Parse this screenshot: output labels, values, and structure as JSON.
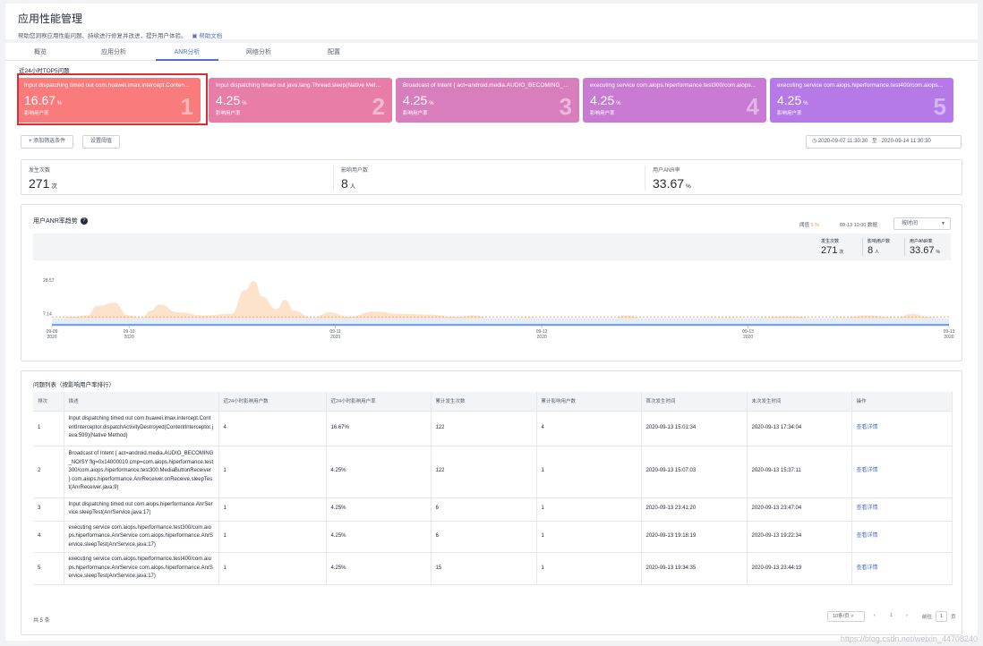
{
  "header": {
    "title": "应用性能管理",
    "desc": "帮助您洞察应用性能问题、持续进行修复并改进，提升用户体验。",
    "help": "帮助文档"
  },
  "tabs": [
    {
      "label": "概览",
      "active": false
    },
    {
      "label": "应用分析",
      "active": false
    },
    {
      "label": "ANR分析",
      "active": true
    },
    {
      "label": "网络分析",
      "active": false
    },
    {
      "label": "配置",
      "active": false
    }
  ],
  "section_label": "近24小时TOP5问题",
  "cards": [
    {
      "title": "Input dispatching timed out com.huawei.imax.intercept.Conten...",
      "value": "16.67",
      "unit": "%",
      "sub": "影响用户率",
      "rank": "1",
      "color": "#f97b7b"
    },
    {
      "title": "Input dispatching timed out java.lang.Thread.sleep(Native Met...",
      "value": "4.25",
      "unit": "%",
      "sub": "影响用户率",
      "rank": "2",
      "color": "#e87ea7"
    },
    {
      "title": "Broadcast of Intent { act=android.media.AUDIO_BECOMING_N...",
      "value": "4.25",
      "unit": "%",
      "sub": "影响用户率",
      "rank": "3",
      "color": "#d97ebd"
    },
    {
      "title": "executing service com.aiops.hiperformance.test300/com.aiops...",
      "value": "4.25",
      "unit": "%",
      "sub": "影响用户率",
      "rank": "4",
      "color": "#c97ad3"
    },
    {
      "title": "executing service com.aiops.hiperformance.test400/com.aiops...",
      "value": "4.25",
      "unit": "%",
      "sub": "影响用户率",
      "rank": "5",
      "color": "#b57ae8"
    }
  ],
  "filters": {
    "add": "+ 添加筛选条件",
    "threshold": "设置阈值",
    "date_from": "2020-09-07 11:30:30",
    "date_sep": "至",
    "date_to": "2020-09-14 11:30:30"
  },
  "stats": [
    {
      "label": "发生次数",
      "value": "271",
      "unit": "次"
    },
    {
      "label": "影响用户数",
      "value": "8",
      "unit": "人"
    },
    {
      "label": "用户ANR率",
      "value": "33.67",
      "unit": "%"
    }
  ],
  "trend": {
    "title": "用户ANR率趋势",
    "threshold_label": "阈值",
    "threshold_value": "5 %",
    "data_time": "09-13 10:00 数据",
    "by_time": "按时间",
    "mini": [
      {
        "label": "发生次数",
        "value": "271",
        "unit": "次"
      },
      {
        "label": "影响用户数",
        "value": "8",
        "unit": "人"
      },
      {
        "label": "用户ANR率",
        "value": "33.67",
        "unit": "%"
      }
    ],
    "colors": {
      "area": "#fde3cc",
      "line": "#2f7bd8",
      "threshold": "#f3a871"
    }
  },
  "chart_data": {
    "type": "area",
    "x_ticks": [
      {
        "date": "09-09",
        "year": "2020"
      },
      {
        "date": "09-10",
        "year": "2020"
      },
      {
        "date": "09-11",
        "year": "2020"
      },
      {
        "date": "09-12",
        "year": "2020"
      },
      {
        "date": "09-13",
        "year": "2020"
      },
      {
        "date": "09-13",
        "year": "2020"
      }
    ],
    "y_ticks": [
      "28.57",
      "7.14"
    ],
    "ylim": [
      0,
      28.57
    ],
    "threshold": 5,
    "line_value": 0,
    "series_points": [
      [
        0,
        2
      ],
      [
        0.02,
        5
      ],
      [
        0.04,
        6
      ],
      [
        0.05,
        12
      ],
      [
        0.07,
        14
      ],
      [
        0.085,
        6
      ],
      [
        0.1,
        4.5
      ],
      [
        0.11,
        9
      ],
      [
        0.12,
        13
      ],
      [
        0.14,
        8
      ],
      [
        0.17,
        6
      ],
      [
        0.2,
        7
      ],
      [
        0.215,
        22
      ],
      [
        0.225,
        28
      ],
      [
        0.235,
        18
      ],
      [
        0.25,
        10
      ],
      [
        0.26,
        16
      ],
      [
        0.27,
        9
      ],
      [
        0.29,
        4.5
      ],
      [
        0.31,
        8
      ],
      [
        0.33,
        5
      ],
      [
        0.36,
        8.5
      ],
      [
        0.39,
        7
      ],
      [
        0.42,
        6.5
      ],
      [
        0.45,
        5
      ],
      [
        0.47,
        6
      ],
      [
        0.49,
        3.5
      ],
      [
        0.51,
        3
      ],
      [
        0.53,
        4.5
      ],
      [
        0.55,
        3.5
      ],
      [
        0.58,
        4
      ],
      [
        0.62,
        3
      ],
      [
        0.64,
        6
      ],
      [
        0.66,
        4
      ],
      [
        0.69,
        3
      ],
      [
        0.72,
        4
      ],
      [
        0.75,
        4.5
      ],
      [
        0.78,
        4
      ],
      [
        0.82,
        5.5
      ],
      [
        0.86,
        3.5
      ],
      [
        0.88,
        4.5
      ],
      [
        0.91,
        6
      ],
      [
        0.94,
        4.5
      ],
      [
        0.96,
        7
      ],
      [
        0.975,
        5
      ],
      [
        0.99,
        4
      ],
      [
        1,
        2
      ]
    ]
  },
  "table": {
    "title": "问题列表（按影响用户率排行）",
    "headers": [
      "排次",
      "描述",
      "近24小时影响用户数",
      "近24小时影响用户率",
      "累计发生次数",
      "累计影响用户数",
      "首次发生时间",
      "末次发生时间",
      "操作"
    ],
    "rows": [
      {
        "rank": "1",
        "desc": "Input dispatching timed out com.huawei.imax.intercept.ContentInterceptor.dispatchActivityDestroyed(ContentInterceptor.java:599)(Native Method)",
        "users24": "4",
        "rate24": "16.67%",
        "total_count": "122",
        "total_users": "4",
        "first": "2020-09-13 15:01:34",
        "last": "2020-09-13 17:34:04",
        "action": "查看详情"
      },
      {
        "rank": "2",
        "desc": "Broadcast of Intent { act=android.media.AUDIO_BECOMING_NOISY flg=0x14000010 cmp=com.aiops.hiperformance.test300/com.aiops.hiperformance.test300.MediaButtonReceiver } com.aiops.hiperformance.AnrReceiver.onReceive.sleepTest(AnrReceiver.java:9)",
        "users24": "1",
        "rate24": "4.25%",
        "total_count": "122",
        "total_users": "1",
        "first": "2020-09-13 15:07:03",
        "last": "2020-09-13 15:37:11",
        "action": "查看详情"
      },
      {
        "rank": "3",
        "desc": "Input dispatching timed out com.aiops.hiperformance.AnrService.sleepTest(AnrService.java:17)",
        "users24": "1",
        "rate24": "4.25%",
        "total_count": "6",
        "total_users": "1",
        "first": "2020-09-13 23:41:20",
        "last": "2020-09-13 23:47:04",
        "action": "查看详情"
      },
      {
        "rank": "4",
        "desc": "executing service com.aiops.hiperformance.test300/com.aiops.hiperformance.AnrService com.aiops.hiperformance.AnrService.sleepTest(AnrService.java:17)",
        "users24": "1",
        "rate24": "4.25%",
        "total_count": "6",
        "total_users": "1",
        "first": "2020-09-13 19:18:19",
        "last": "2020-09-13 19:22:34",
        "action": "查看详情"
      },
      {
        "rank": "5",
        "desc": "executing service com.aiops.hiperformance.test400/com.aiops.hiperformance.AnrService com.aiops.hiperformance.AnrService.sleepTest(AnrService.java:17)",
        "users24": "1",
        "rate24": "4.25%",
        "total_count": "15",
        "total_users": "1",
        "first": "2020-09-13 19:34:35",
        "last": "2020-09-13 23:44:19",
        "action": "查看详情"
      }
    ],
    "total": "共 5 条",
    "pager": {
      "size": "10条/页",
      "prev": "‹",
      "current": "1",
      "next": "›",
      "goto": "前往",
      "page": "1",
      "page_unit": "页"
    }
  },
  "watermark": "https://blog.csdn.net/weixin_44708240"
}
